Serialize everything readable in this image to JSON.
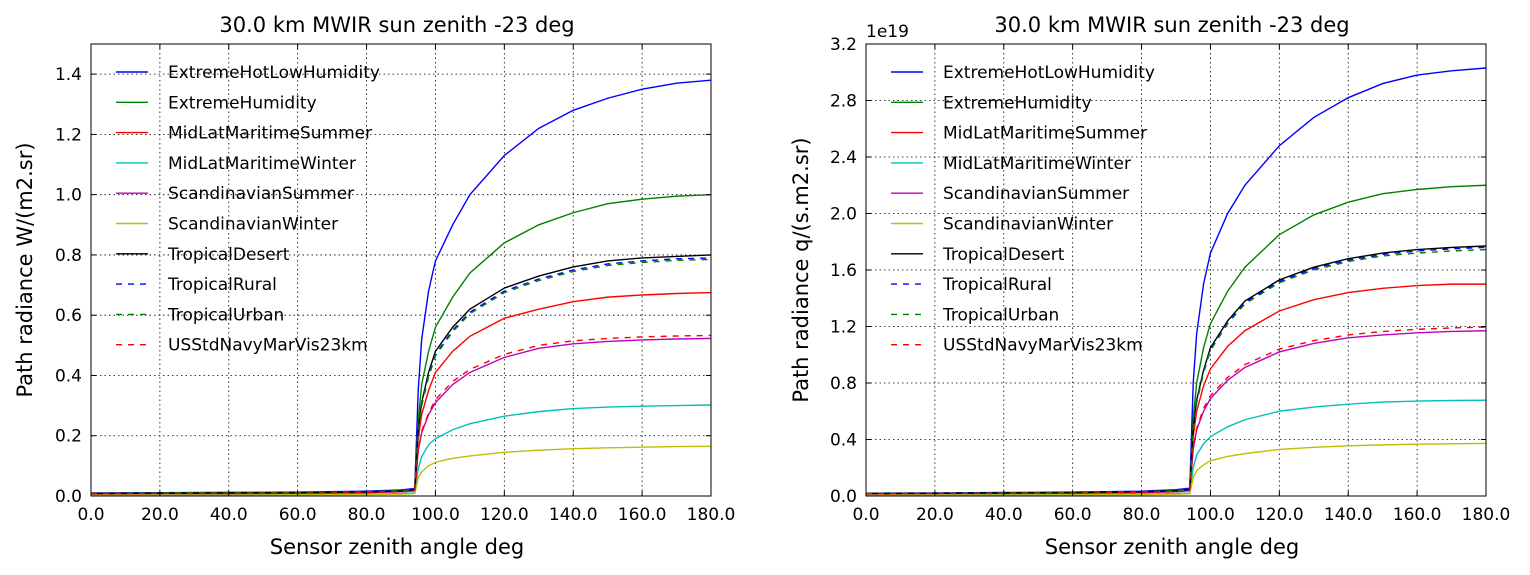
{
  "chart_data": [
    {
      "type": "line",
      "title": "30.0 km MWIR sun zenith -23 deg",
      "xlabel": "Sensor zenith angle deg",
      "ylabel": "Path radiance W/(m2.sr)",
      "offset_text": "",
      "xlim": [
        0,
        180
      ],
      "ylim": [
        0,
        1.5
      ],
      "xticks": [
        0,
        20,
        40,
        60,
        80,
        100,
        120,
        140,
        160,
        180
      ],
      "xtick_labels": [
        "0.0",
        "20.0",
        "40.0",
        "60.0",
        "80.0",
        "100.0",
        "120.0",
        "140.0",
        "160.0",
        "180.0"
      ],
      "yticks": [
        0,
        0.2,
        0.4,
        0.6,
        0.8,
        1.0,
        1.2,
        1.4
      ],
      "ytick_labels": [
        "0.0",
        "0.2",
        "0.4",
        "0.6",
        "0.8",
        "1.0",
        "1.2",
        "1.4"
      ],
      "grid": true,
      "legend_position": "upper-left",
      "x": [
        0,
        20,
        40,
        60,
        80,
        90,
        94,
        95,
        96,
        98,
        100,
        105,
        110,
        120,
        130,
        140,
        150,
        160,
        170,
        180
      ],
      "series": [
        {
          "name": "ExtremeHotLowHumidity",
          "color": "#0000ff",
          "dash": "solid",
          "values": [
            0.01,
            0.011,
            0.012,
            0.013,
            0.016,
            0.02,
            0.025,
            0.35,
            0.52,
            0.68,
            0.78,
            0.9,
            1.0,
            1.13,
            1.22,
            1.28,
            1.32,
            1.35,
            1.37,
            1.38
          ]
        },
        {
          "name": "ExtremeHumidity",
          "color": "#008000",
          "dash": "solid",
          "values": [
            0.009,
            0.01,
            0.011,
            0.012,
            0.014,
            0.018,
            0.022,
            0.25,
            0.37,
            0.48,
            0.56,
            0.66,
            0.74,
            0.84,
            0.9,
            0.94,
            0.97,
            0.985,
            0.995,
            1.0
          ]
        },
        {
          "name": "MidLatMaritimeSummer",
          "color": "#ff0000",
          "dash": "solid",
          "values": [
            0.008,
            0.009,
            0.01,
            0.011,
            0.013,
            0.016,
            0.019,
            0.19,
            0.27,
            0.35,
            0.41,
            0.48,
            0.53,
            0.59,
            0.62,
            0.645,
            0.66,
            0.667,
            0.672,
            0.675
          ]
        },
        {
          "name": "MidLatMaritimeWinter",
          "color": "#00bfbf",
          "dash": "solid",
          "values": [
            0.004,
            0.004,
            0.005,
            0.005,
            0.006,
            0.008,
            0.01,
            0.09,
            0.13,
            0.17,
            0.19,
            0.22,
            0.24,
            0.265,
            0.28,
            0.29,
            0.295,
            0.298,
            0.3,
            0.302
          ]
        },
        {
          "name": "ScandinavianSummer",
          "color": "#bf00bf",
          "dash": "solid",
          "values": [
            0.007,
            0.008,
            0.008,
            0.009,
            0.011,
            0.014,
            0.017,
            0.15,
            0.21,
            0.27,
            0.31,
            0.37,
            0.41,
            0.46,
            0.49,
            0.505,
            0.513,
            0.518,
            0.521,
            0.523
          ]
        },
        {
          "name": "ScandinavianWinter",
          "color": "#bfbf00",
          "dash": "solid",
          "values": [
            0.003,
            0.003,
            0.003,
            0.004,
            0.005,
            0.006,
            0.008,
            0.06,
            0.08,
            0.1,
            0.112,
            0.125,
            0.133,
            0.145,
            0.152,
            0.157,
            0.16,
            0.162,
            0.164,
            0.165
          ]
        },
        {
          "name": "TropicalDesert",
          "color": "#000000",
          "dash": "solid",
          "values": [
            0.008,
            0.009,
            0.01,
            0.011,
            0.013,
            0.017,
            0.021,
            0.22,
            0.31,
            0.41,
            0.48,
            0.56,
            0.62,
            0.69,
            0.73,
            0.76,
            0.78,
            0.79,
            0.795,
            0.8
          ]
        },
        {
          "name": "TropicalRural",
          "color": "#0000ff",
          "dash": "dashed",
          "values": [
            0.008,
            0.009,
            0.01,
            0.011,
            0.013,
            0.017,
            0.021,
            0.215,
            0.305,
            0.4,
            0.47,
            0.55,
            0.61,
            0.68,
            0.72,
            0.75,
            0.77,
            0.78,
            0.787,
            0.79
          ]
        },
        {
          "name": "TropicalUrban",
          "color": "#008000",
          "dash": "dashed",
          "values": [
            0.008,
            0.009,
            0.01,
            0.011,
            0.013,
            0.017,
            0.021,
            0.21,
            0.3,
            0.395,
            0.465,
            0.545,
            0.605,
            0.675,
            0.715,
            0.745,
            0.765,
            0.775,
            0.782,
            0.785
          ]
        },
        {
          "name": "USStdNavyMarVis23km",
          "color": "#ff0000",
          "dash": "dashed",
          "values": [
            0.007,
            0.008,
            0.008,
            0.009,
            0.011,
            0.014,
            0.017,
            0.15,
            0.215,
            0.275,
            0.32,
            0.38,
            0.42,
            0.47,
            0.5,
            0.515,
            0.523,
            0.528,
            0.531,
            0.533
          ]
        }
      ]
    },
    {
      "type": "line",
      "title": "30.0 km MWIR sun zenith -23 deg",
      "xlabel": "Sensor zenith angle deg",
      "ylabel": "Path radiance q/(s.m2.sr)",
      "offset_text": "1e19",
      "xlim": [
        0,
        180
      ],
      "ylim": [
        0,
        3.2
      ],
      "xticks": [
        0,
        20,
        40,
        60,
        80,
        100,
        120,
        140,
        160,
        180
      ],
      "xtick_labels": [
        "0.0",
        "20.0",
        "40.0",
        "60.0",
        "80.0",
        "100.0",
        "120.0",
        "140.0",
        "160.0",
        "180.0"
      ],
      "yticks": [
        0,
        0.4,
        0.8,
        1.2,
        1.6,
        2.0,
        2.4,
        2.8,
        3.2
      ],
      "ytick_labels": [
        "0.0",
        "0.4",
        "0.8",
        "1.2",
        "1.6",
        "2.0",
        "2.4",
        "2.8",
        "3.2"
      ],
      "grid": true,
      "legend_position": "upper-left",
      "x": [
        0,
        20,
        40,
        60,
        80,
        90,
        94,
        95,
        96,
        98,
        100,
        105,
        110,
        120,
        130,
        140,
        150,
        160,
        170,
        180
      ],
      "series": [
        {
          "name": "ExtremeHotLowHumidity",
          "color": "#0000ff",
          "dash": "solid",
          "values": [
            0.02,
            0.022,
            0.025,
            0.028,
            0.034,
            0.045,
            0.055,
            0.8,
            1.15,
            1.5,
            1.72,
            2.0,
            2.2,
            2.48,
            2.68,
            2.82,
            2.92,
            2.98,
            3.01,
            3.03
          ]
        },
        {
          "name": "ExtremeHumidity",
          "color": "#008000",
          "dash": "solid",
          "values": [
            0.018,
            0.02,
            0.022,
            0.025,
            0.03,
            0.038,
            0.048,
            0.55,
            0.8,
            1.05,
            1.22,
            1.45,
            1.62,
            1.85,
            1.99,
            2.08,
            2.14,
            2.17,
            2.19,
            2.2
          ]
        },
        {
          "name": "MidLatMaritimeSummer",
          "color": "#ff0000",
          "dash": "solid",
          "values": [
            0.016,
            0.018,
            0.02,
            0.022,
            0.027,
            0.034,
            0.042,
            0.42,
            0.6,
            0.78,
            0.9,
            1.06,
            1.17,
            1.31,
            1.39,
            1.44,
            1.47,
            1.49,
            1.5,
            1.5
          ]
        },
        {
          "name": "MidLatMaritimeWinter",
          "color": "#00bfbf",
          "dash": "solid",
          "values": [
            0.008,
            0.009,
            0.01,
            0.011,
            0.013,
            0.017,
            0.021,
            0.2,
            0.29,
            0.37,
            0.42,
            0.49,
            0.54,
            0.6,
            0.63,
            0.65,
            0.665,
            0.672,
            0.676,
            0.678
          ]
        },
        {
          "name": "ScandinavianSummer",
          "color": "#bf00bf",
          "dash": "solid",
          "values": [
            0.015,
            0.017,
            0.018,
            0.02,
            0.024,
            0.03,
            0.037,
            0.33,
            0.47,
            0.6,
            0.69,
            0.82,
            0.91,
            1.02,
            1.08,
            1.12,
            1.14,
            1.155,
            1.165,
            1.17
          ]
        },
        {
          "name": "ScandinavianWinter",
          "color": "#bfbf00",
          "dash": "solid",
          "values": [
            0.006,
            0.007,
            0.007,
            0.008,
            0.01,
            0.013,
            0.016,
            0.13,
            0.18,
            0.22,
            0.25,
            0.28,
            0.3,
            0.33,
            0.345,
            0.355,
            0.362,
            0.367,
            0.37,
            0.372
          ]
        },
        {
          "name": "TropicalDesert",
          "color": "#000000",
          "dash": "solid",
          "values": [
            0.017,
            0.019,
            0.021,
            0.024,
            0.029,
            0.037,
            0.046,
            0.48,
            0.68,
            0.89,
            1.05,
            1.24,
            1.38,
            1.53,
            1.62,
            1.68,
            1.72,
            1.745,
            1.76,
            1.77
          ]
        },
        {
          "name": "TropicalRural",
          "color": "#0000ff",
          "dash": "dashed",
          "values": [
            0.017,
            0.019,
            0.021,
            0.024,
            0.029,
            0.037,
            0.046,
            0.47,
            0.67,
            0.88,
            1.04,
            1.23,
            1.37,
            1.52,
            1.61,
            1.67,
            1.71,
            1.735,
            1.75,
            1.76
          ]
        },
        {
          "name": "TropicalUrban",
          "color": "#008000",
          "dash": "dashed",
          "values": [
            0.017,
            0.019,
            0.021,
            0.024,
            0.029,
            0.037,
            0.046,
            0.46,
            0.66,
            0.87,
            1.03,
            1.22,
            1.36,
            1.51,
            1.6,
            1.66,
            1.7,
            1.72,
            1.735,
            1.745
          ]
        },
        {
          "name": "USStdNavyMarVis23km",
          "color": "#ff0000",
          "dash": "dashed",
          "values": [
            0.015,
            0.017,
            0.018,
            0.02,
            0.024,
            0.03,
            0.037,
            0.34,
            0.48,
            0.62,
            0.71,
            0.84,
            0.93,
            1.04,
            1.1,
            1.14,
            1.165,
            1.18,
            1.19,
            1.195
          ]
        }
      ]
    }
  ]
}
